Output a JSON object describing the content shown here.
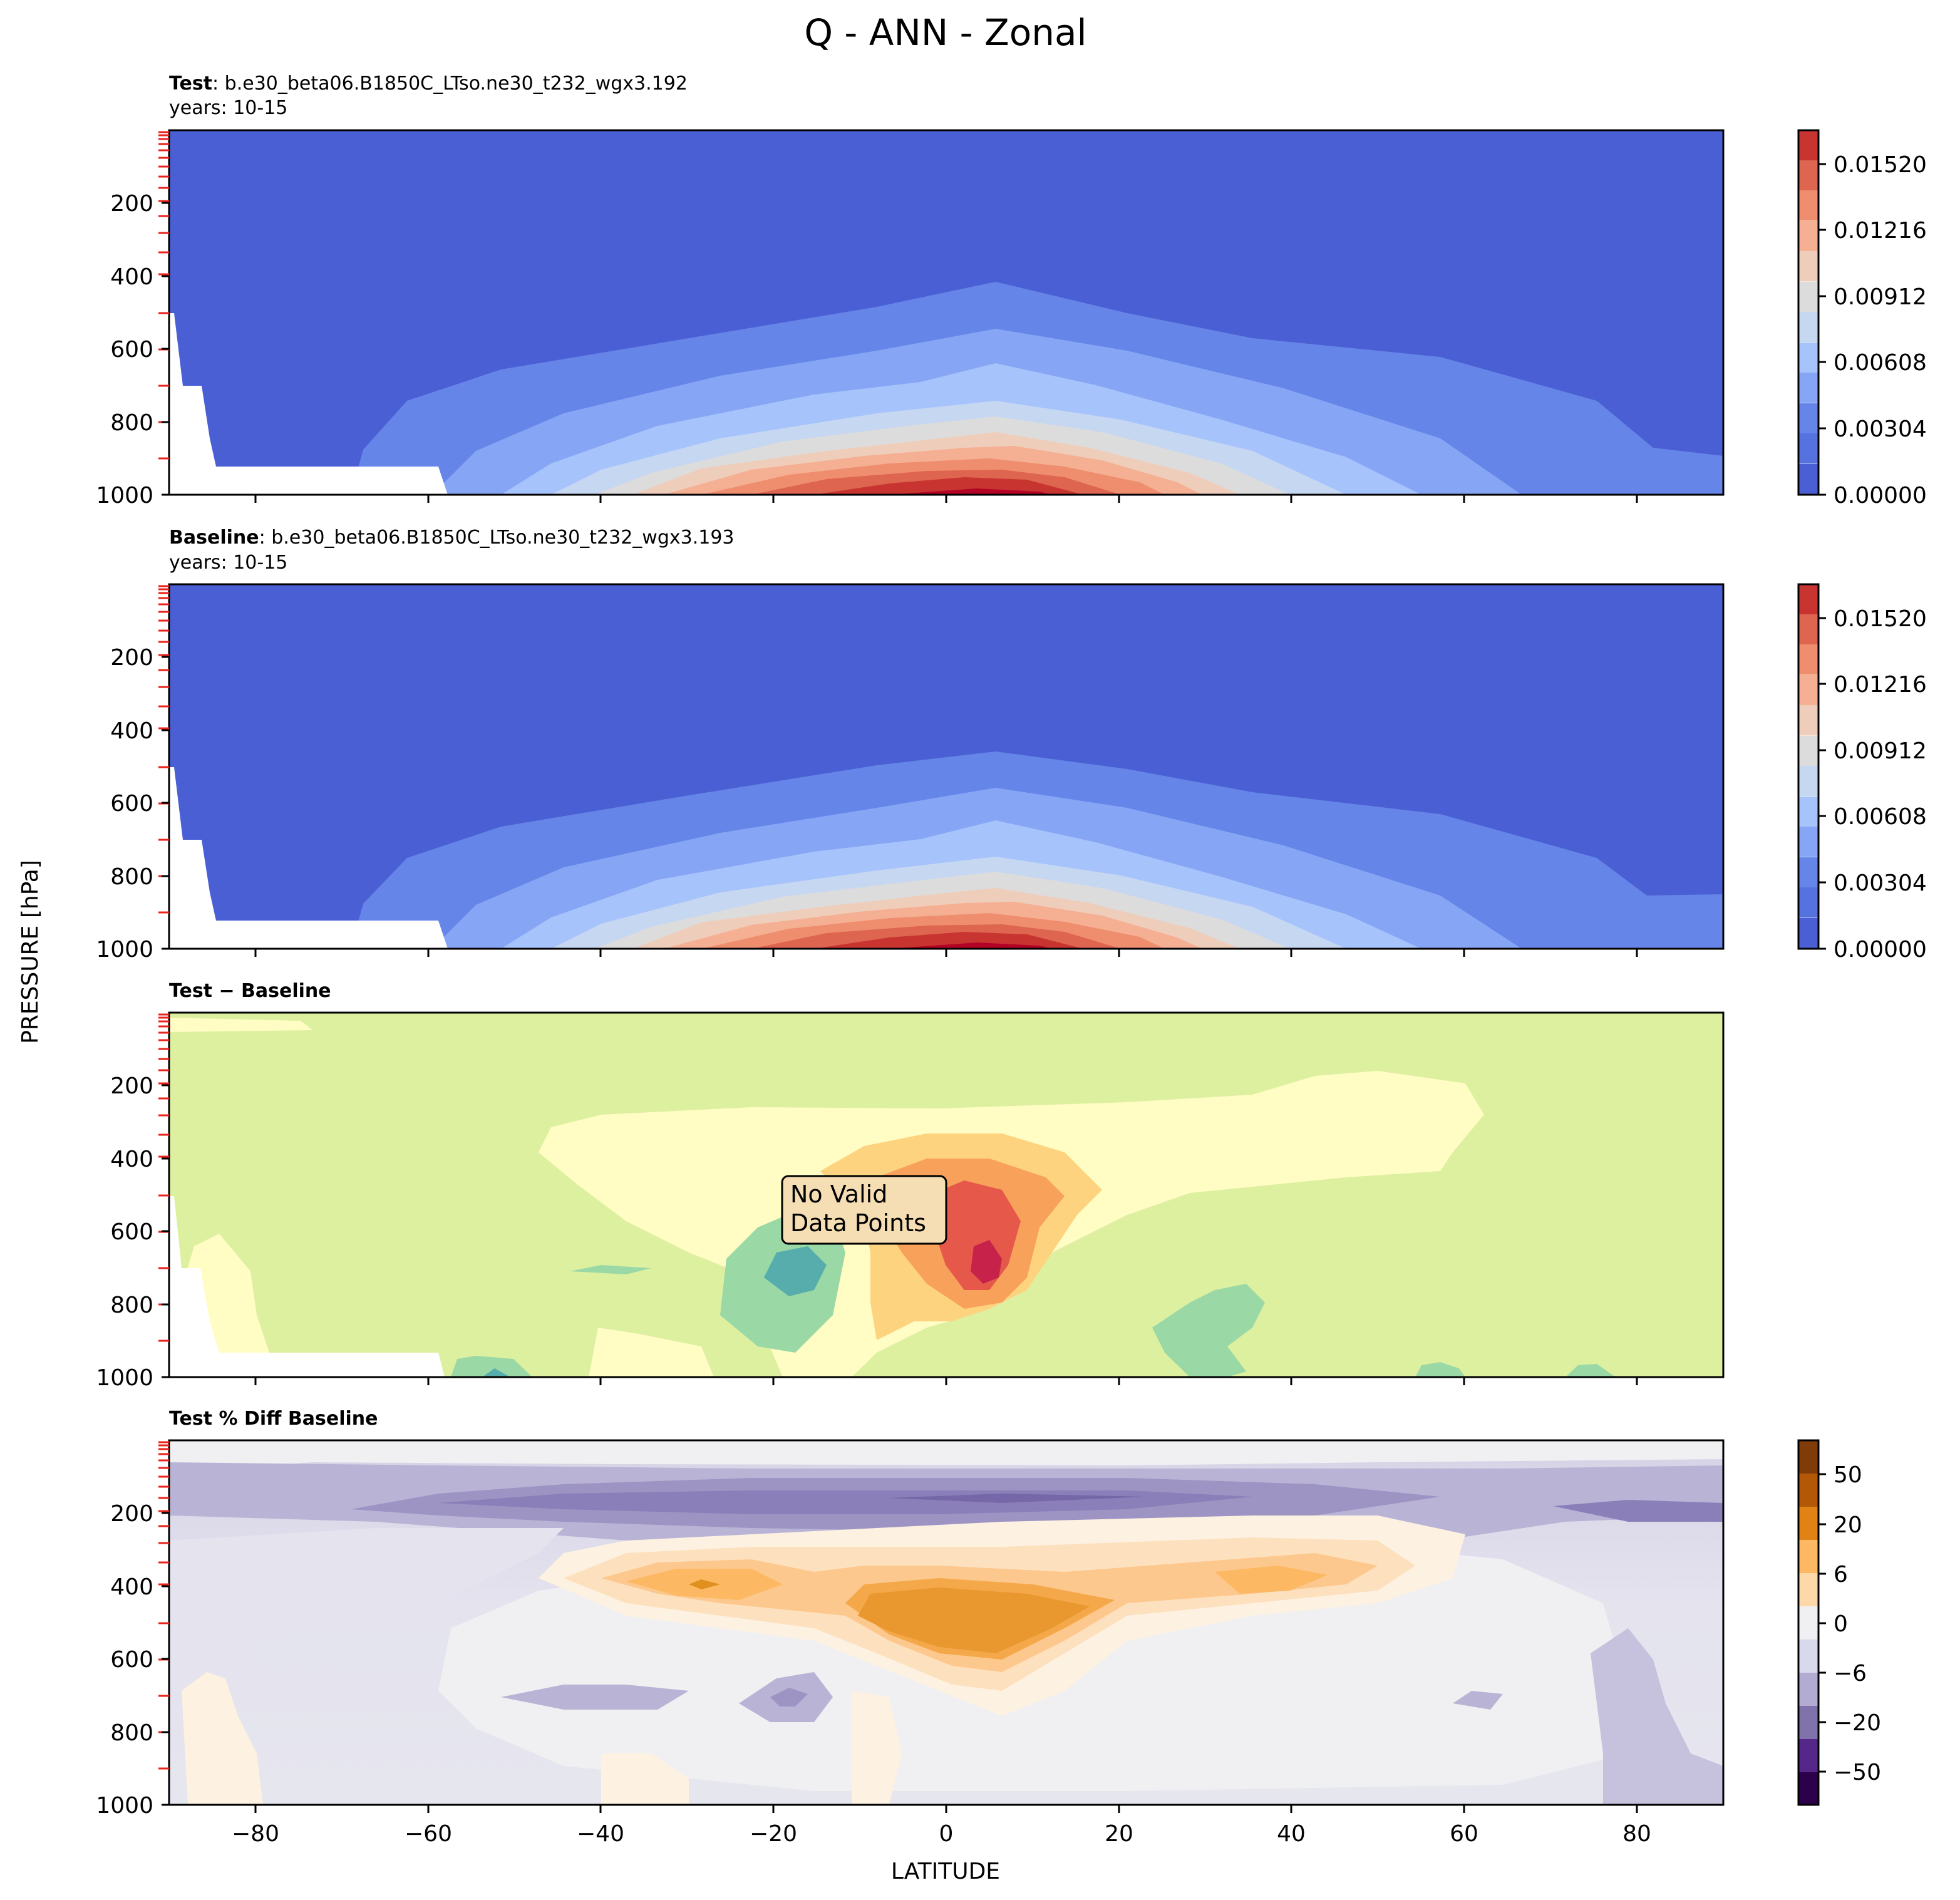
{
  "figure": {
    "title": "Q - ANN - Zonal",
    "ylabel": "PRESSURE [hPa]",
    "xlabel": "LATITUDE"
  },
  "chart_data": [
    {
      "type": "heatmap",
      "title_bold": "Test",
      "title_rest": ": b.e30_beta06.B1850C_LTso.ne30_t232_wgx3.192",
      "subtitle": "years: 10-15",
      "xlim": [
        -90,
        90
      ],
      "ylim": [
        1000,
        0
      ],
      "xticks": [
        -80,
        -60,
        -40,
        -20,
        0,
        20,
        40,
        60,
        80
      ],
      "yticks": [
        200,
        400,
        600,
        800,
        1000
      ],
      "colorbar": {
        "min": 0.0,
        "max": 0.01672,
        "ticks": [
          "0.00000",
          "0.00304",
          "0.00608",
          "0.00912",
          "0.01216",
          "0.01520"
        ]
      },
      "peak": {
        "lat": 5,
        "lev": 1000,
        "value": 0.0165
      },
      "tropopause_level_at_equator": 450,
      "colors": [
        "#4a5fd3",
        "#6585e8",
        "#86a6f5",
        "#a7c3fb",
        "#c6d7f2",
        "#dddcdc",
        "#efcdbb",
        "#f5b093",
        "#ee8e6f",
        "#de6550",
        "#c83531",
        "#b40426"
      ]
    },
    {
      "type": "heatmap",
      "title_bold": "Baseline",
      "title_rest": ": b.e30_beta06.B1850C_LTso.ne30_t232_wgx3.193",
      "subtitle": "years: 10-15",
      "xlim": [
        -90,
        90
      ],
      "ylim": [
        1000,
        0
      ],
      "xticks": [
        -80,
        -60,
        -40,
        -20,
        0,
        20,
        40,
        60,
        80
      ],
      "yticks": [
        200,
        400,
        600,
        800,
        1000
      ],
      "colorbar": {
        "min": 0.0,
        "max": 0.01672,
        "ticks": [
          "0.00000",
          "0.00304",
          "0.00608",
          "0.00912",
          "0.01216",
          "0.01520"
        ]
      },
      "peak": {
        "lat": 5,
        "lev": 1000,
        "value": 0.0165
      },
      "tropopause_level_at_equator": 460
    },
    {
      "type": "heatmap",
      "title": "Test − Baseline",
      "xlim": [
        -90,
        90
      ],
      "ylim": [
        1000,
        0
      ],
      "xticks": [
        -80,
        -60,
        -40,
        -20,
        0,
        20,
        40,
        60,
        80
      ],
      "yticks": [
        200,
        400,
        600,
        800,
        1000
      ],
      "annotation": [
        "No Valid",
        "Data Points"
      ],
      "max_anomaly": {
        "lat": 5,
        "lev": 700
      },
      "min_anomaly": {
        "lat": -17,
        "lev": 730
      },
      "colors": [
        "#ddf0a0",
        "#fffcc4",
        "#fed37f",
        "#f7a15a",
        "#e6594a",
        "#c7234a",
        "#9ad8a6",
        "#56adac"
      ]
    },
    {
      "type": "heatmap",
      "title": "Test % Diff Baseline",
      "xlim": [
        -90,
        90
      ],
      "ylim": [
        1000,
        0
      ],
      "xticks": [
        -80,
        -60,
        -40,
        -20,
        0,
        20,
        40,
        60,
        80
      ],
      "yticks": [
        200,
        400,
        600,
        800,
        1000
      ],
      "colorbar": {
        "ticks": [
          "50",
          "20",
          "6",
          "0",
          "−6",
          "−20",
          "−50"
        ]
      },
      "colors": [
        "#2d004b",
        "#542788",
        "#8073ac",
        "#b2abd2",
        "#d8daeb",
        "#f0f0f2",
        "#fde8cc",
        "#fdb863",
        "#e08214",
        "#b35806",
        "#7f3b08"
      ]
    }
  ]
}
